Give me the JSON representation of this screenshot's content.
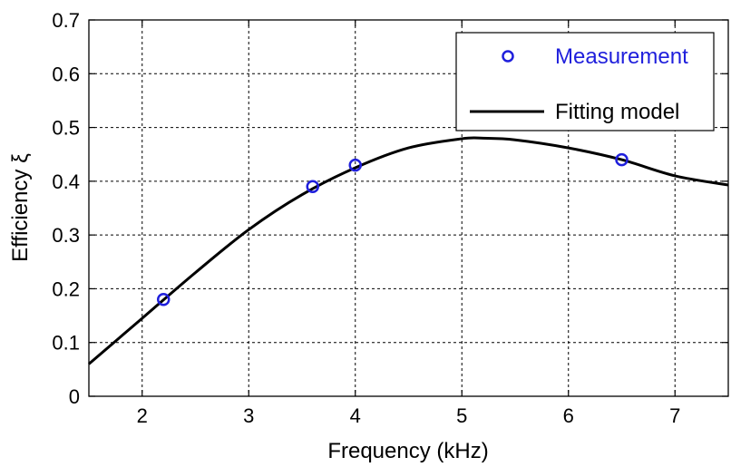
{
  "chart_data": {
    "type": "line",
    "title": "",
    "xlabel": "Frequency (kHz)",
    "ylabel": "Efficiency ξ",
    "xlim": [
      1.5,
      7.5
    ],
    "ylim": [
      0,
      0.7
    ],
    "x_ticks": [
      "2",
      "3",
      "4",
      "5",
      "6",
      "7"
    ],
    "y_ticks": [
      "0",
      "0.1",
      "0.2",
      "0.3",
      "0.4",
      "0.5",
      "0.6",
      "0.7"
    ],
    "grid": true,
    "legend": "top-right",
    "series": [
      {
        "name": "Measurement",
        "kind": "scatter",
        "marker": "circle",
        "color": "#1f1fdc",
        "x": [
          2.2,
          3.6,
          4.0,
          6.5
        ],
        "y": [
          0.18,
          0.39,
          0.43,
          0.44
        ]
      },
      {
        "name": "Fitting model",
        "kind": "line",
        "color": "#000000",
        "x": [
          1.5,
          2.0,
          2.5,
          3.0,
          3.5,
          4.0,
          4.5,
          5.0,
          5.2,
          5.5,
          6.0,
          6.5,
          7.0,
          7.5
        ],
        "y": [
          0.06,
          0.145,
          0.23,
          0.31,
          0.375,
          0.425,
          0.462,
          0.479,
          0.48,
          0.477,
          0.462,
          0.44,
          0.41,
          0.393
        ]
      }
    ]
  }
}
